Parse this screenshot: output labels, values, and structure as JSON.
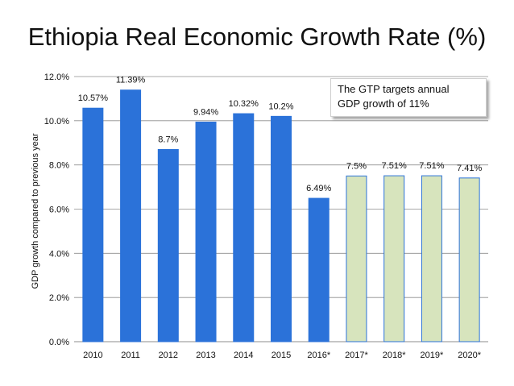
{
  "chart_data": {
    "type": "bar",
    "title": "Ethiopia Real Economic Growth Rate (%)",
    "xlabel": "",
    "ylabel": "GDP growth compared to previous year",
    "ylim": [
      0,
      12
    ],
    "yticks": [
      "0.0%",
      "2.0%",
      "4.0%",
      "6.0%",
      "8.0%",
      "10.0%",
      "12.0%"
    ],
    "grid": true,
    "categories": [
      "2010",
      "2011",
      "2012",
      "2013",
      "2014",
      "2015",
      "2016*",
      "2017*",
      "2018*",
      "2019*",
      "2020*"
    ],
    "values": [
      10.57,
      11.39,
      8.7,
      9.94,
      10.32,
      10.2,
      6.49,
      7.5,
      7.51,
      7.51,
      7.41
    ],
    "data_labels": [
      "10.57%",
      "11.39%",
      "8.7%",
      "9.94%",
      "10.32%",
      "10.2%",
      "6.49%",
      "7.5%",
      "7.51%",
      "7.51%",
      "7.41%"
    ],
    "bar_colors": [
      "#2b72d9",
      "#2b72d9",
      "#2b72d9",
      "#2b72d9",
      "#2b72d9",
      "#2b72d9",
      "#2b72d9",
      "#d7e4bd",
      "#d7e4bd",
      "#d7e4bd",
      "#d7e4bd"
    ],
    "bar_stroke": [
      "#2b72d9",
      "#2b72d9",
      "#2b72d9",
      "#2b72d9",
      "#2b72d9",
      "#2b72d9",
      "#2b72d9",
      "#2b72d9",
      "#2b72d9",
      "#2b72d9",
      "#2b72d9"
    ],
    "annotation": {
      "line1": "The GTP targets annual",
      "line2": "GDP growth of 11%"
    }
  }
}
